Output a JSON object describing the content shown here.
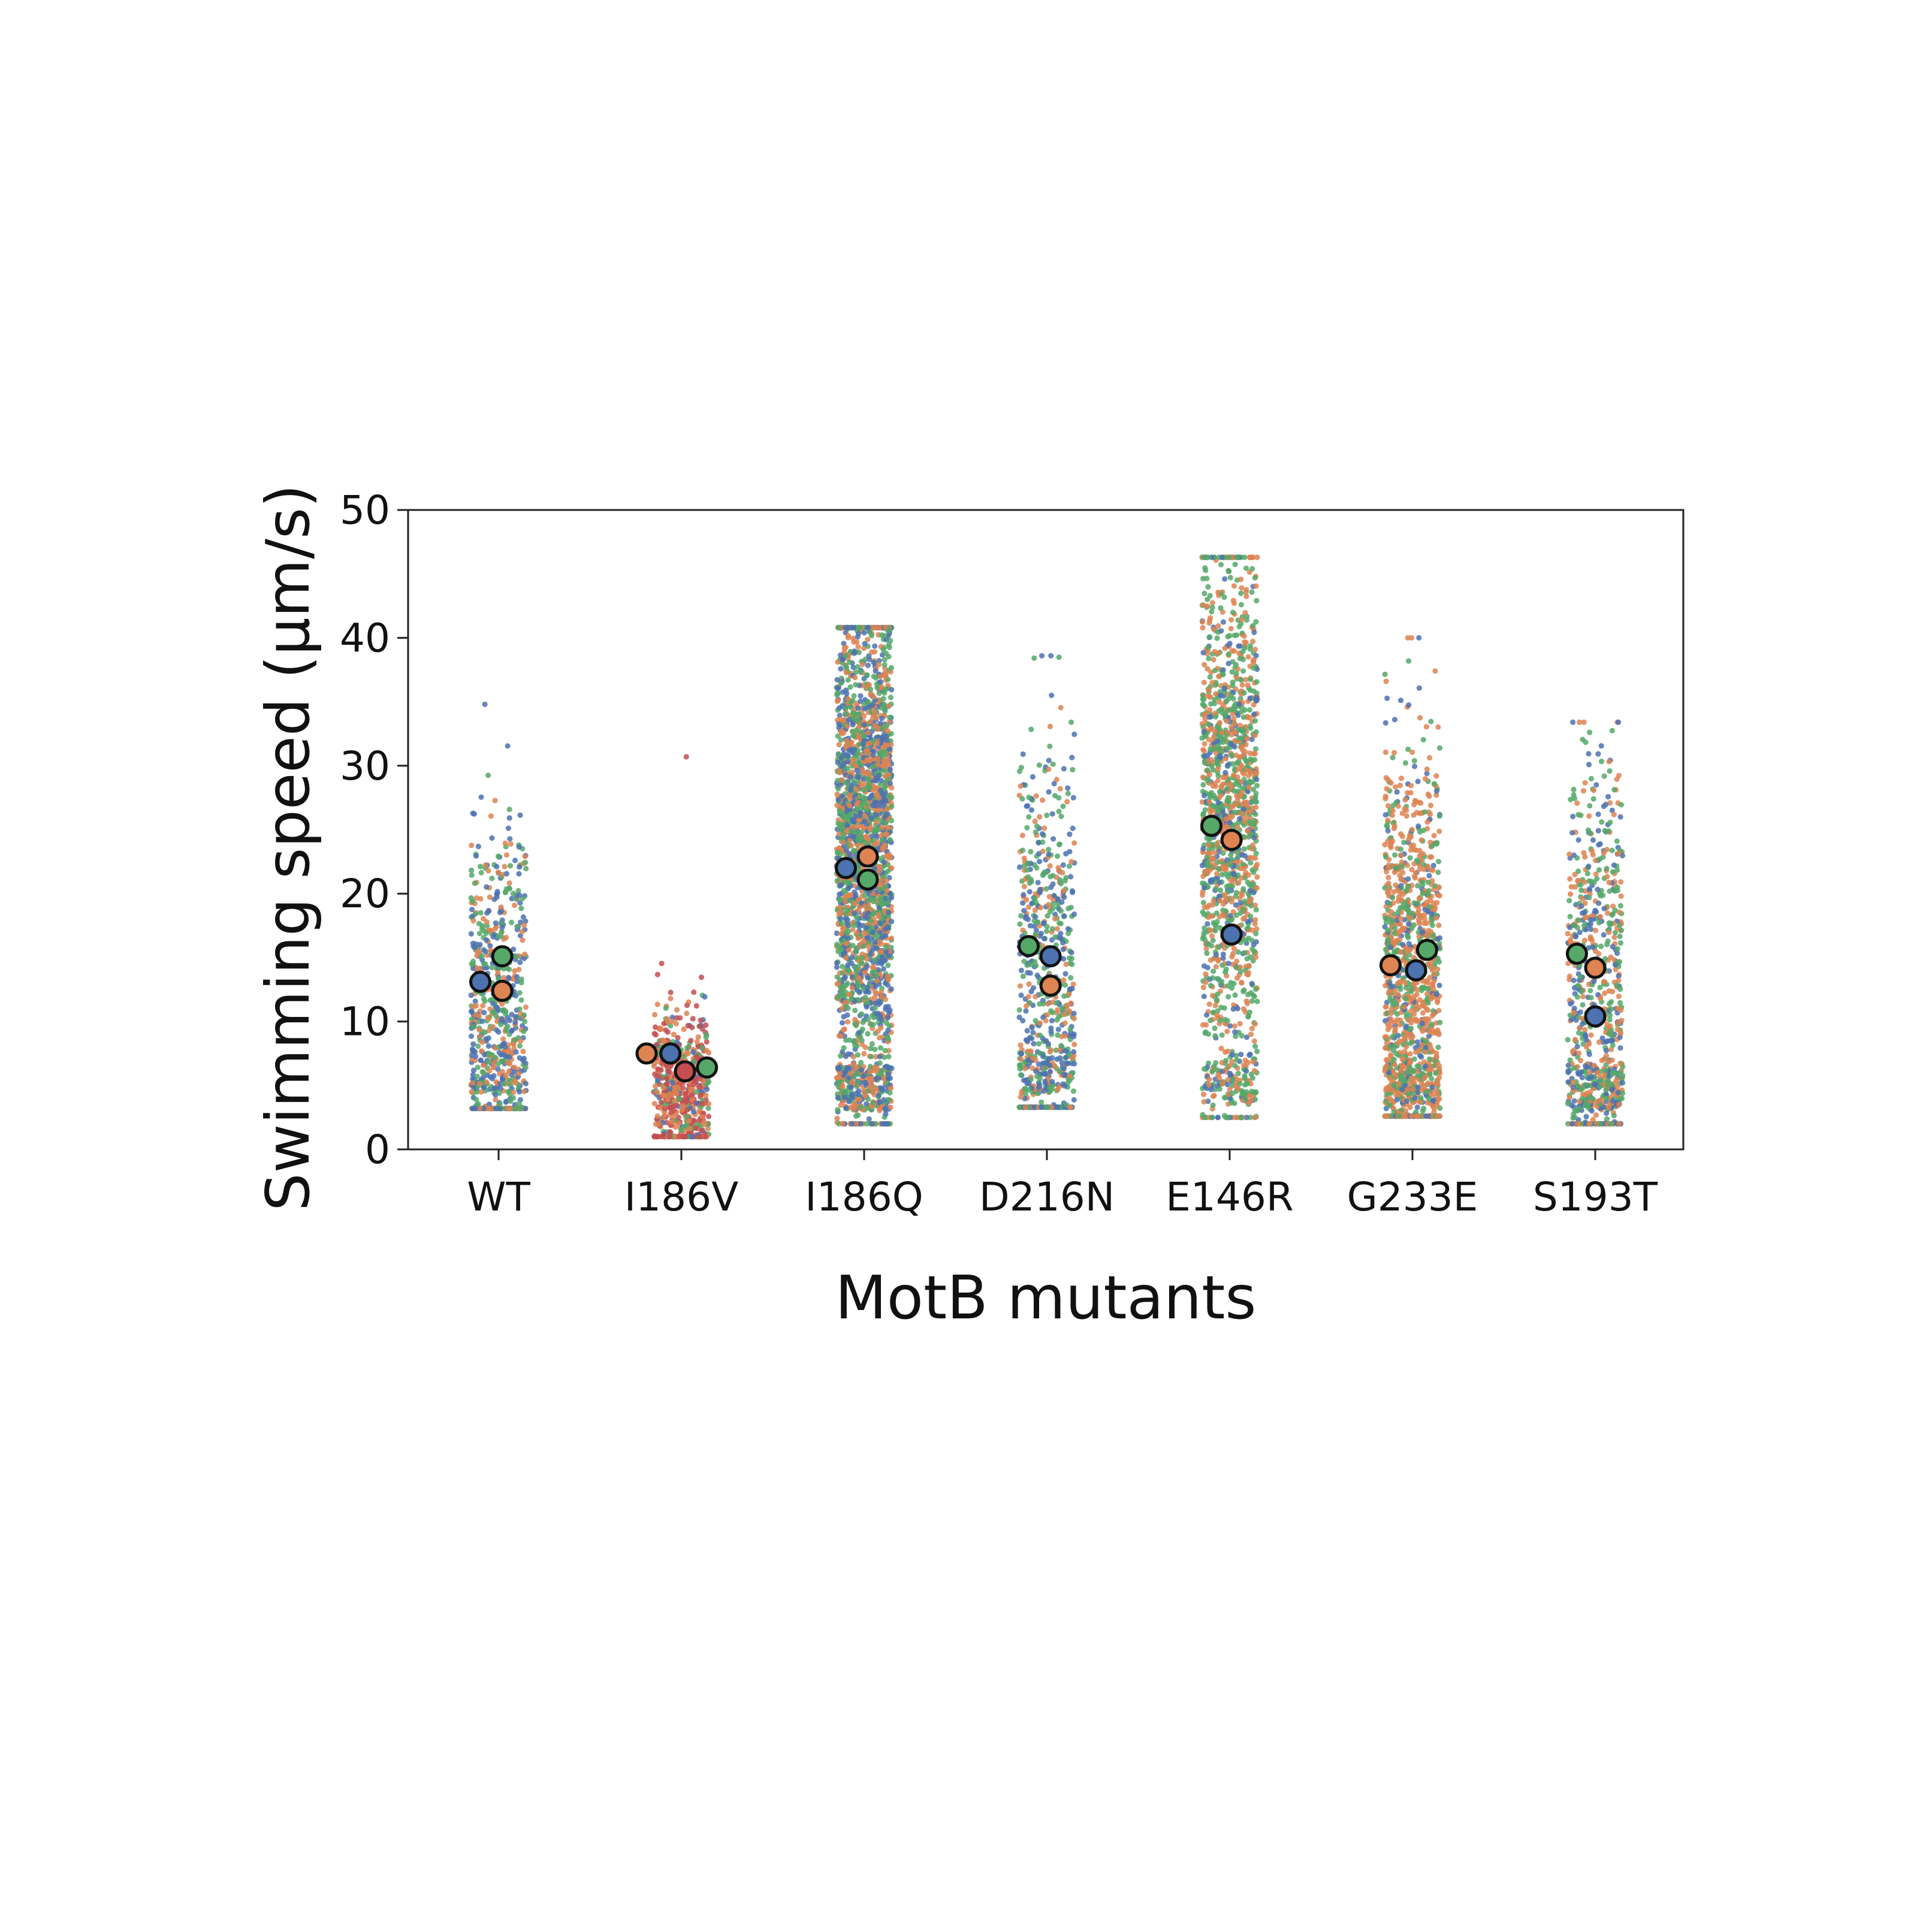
{
  "chart_data": {
    "type": "scatter",
    "subtype": "strip-plot-with-replicate-means",
    "title": "",
    "xlabel": "MotB mutants",
    "ylabel": "Swimming speed (µm/s)",
    "ylim": [
      0,
      50
    ],
    "yticks": [
      0,
      10,
      20,
      30,
      40,
      50
    ],
    "grid": false,
    "legend": "none",
    "categories": [
      "WT",
      "I186V",
      "I186Q",
      "D216N",
      "E146R",
      "G233E",
      "S193T"
    ],
    "replicate_colors": {
      "blue": "#4c72b0",
      "orange": "#dd8452",
      "green": "#55a868",
      "red": "#c44e52"
    },
    "replicate_means": [
      {
        "category": "WT",
        "points": [
          {
            "replicate": "blue",
            "value": 13.1,
            "offset": -0.1
          },
          {
            "replicate": "green",
            "value": 15.1,
            "offset": 0.02
          },
          {
            "replicate": "orange",
            "value": 12.4,
            "offset": 0.02
          }
        ]
      },
      {
        "category": "I186V",
        "points": [
          {
            "replicate": "orange",
            "value": 7.5,
            "offset": -0.19
          },
          {
            "replicate": "blue",
            "value": 7.5,
            "offset": -0.06
          },
          {
            "replicate": "red",
            "value": 6.1,
            "offset": 0.02
          },
          {
            "replicate": "green",
            "value": 6.4,
            "offset": 0.14
          }
        ]
      },
      {
        "category": "I186Q",
        "points": [
          {
            "replicate": "blue",
            "value": 22.0,
            "offset": -0.1
          },
          {
            "replicate": "orange",
            "value": 22.9,
            "offset": 0.02
          },
          {
            "replicate": "green",
            "value": 21.1,
            "offset": 0.02
          }
        ]
      },
      {
        "category": "D216N",
        "points": [
          {
            "replicate": "green",
            "value": 15.9,
            "offset": -0.1
          },
          {
            "replicate": "blue",
            "value": 15.1,
            "offset": 0.02
          },
          {
            "replicate": "orange",
            "value": 12.8,
            "offset": 0.02
          }
        ]
      },
      {
        "category": "E146R",
        "points": [
          {
            "replicate": "green",
            "value": 25.3,
            "offset": -0.1
          },
          {
            "replicate": "orange",
            "value": 24.2,
            "offset": 0.01
          },
          {
            "replicate": "blue",
            "value": 16.8,
            "offset": 0.01
          }
        ]
      },
      {
        "category": "G233E",
        "points": [
          {
            "replicate": "orange",
            "value": 14.4,
            "offset": -0.12
          },
          {
            "replicate": "blue",
            "value": 14.0,
            "offset": 0.02
          },
          {
            "replicate": "green",
            "value": 15.6,
            "offset": 0.08
          }
        ]
      },
      {
        "category": "S193T",
        "points": [
          {
            "replicate": "green",
            "value": 15.3,
            "offset": -0.1
          },
          {
            "replicate": "orange",
            "value": 14.2,
            "offset": 0.0
          },
          {
            "replicate": "blue",
            "value": 10.4,
            "offset": 0.0
          }
        ]
      }
    ],
    "raw_distributions": [
      {
        "category": "WT",
        "n": 700,
        "min": 3.2,
        "max": 34.8,
        "center": 11,
        "spread": 7,
        "low_cluster": 0.12,
        "colors": {
          "blue": 0.4,
          "orange": 0.3,
          "green": 0.3
        }
      },
      {
        "category": "I186V",
        "n": 600,
        "min": 1.0,
        "max": 30.7,
        "center": 5,
        "spread": 3,
        "low_cluster": 0.0,
        "colors": {
          "red": 0.45,
          "orange": 0.3,
          "green": 0.15,
          "blue": 0.1
        }
      },
      {
        "category": "I186Q",
        "n": 2600,
        "min": 2.0,
        "max": 40.8,
        "center": 24,
        "spread": 10,
        "low_cluster": 0.08,
        "colors": {
          "blue": 0.33,
          "orange": 0.34,
          "green": 0.33
        }
      },
      {
        "category": "D216N",
        "n": 700,
        "min": 3.3,
        "max": 38.6,
        "center": 14,
        "spread": 9,
        "low_cluster": 0.15,
        "colors": {
          "blue": 0.4,
          "orange": 0.25,
          "green": 0.35
        }
      },
      {
        "category": "E146R",
        "n": 1500,
        "min": 2.5,
        "max": 46.3,
        "center": 26,
        "spread": 10,
        "low_cluster": 0.07,
        "colors": {
          "green": 0.45,
          "orange": 0.4,
          "blue": 0.15
        }
      },
      {
        "category": "G233E",
        "n": 1300,
        "min": 2.6,
        "max": 40.0,
        "center": 13,
        "spread": 9,
        "low_cluster": 0.12,
        "colors": {
          "orange": 0.55,
          "green": 0.3,
          "blue": 0.15
        }
      },
      {
        "category": "S193T",
        "n": 800,
        "min": 2.0,
        "max": 33.4,
        "center": 13,
        "spread": 9,
        "low_cluster": 0.18,
        "colors": {
          "orange": 0.35,
          "green": 0.35,
          "blue": 0.3
        }
      }
    ]
  }
}
